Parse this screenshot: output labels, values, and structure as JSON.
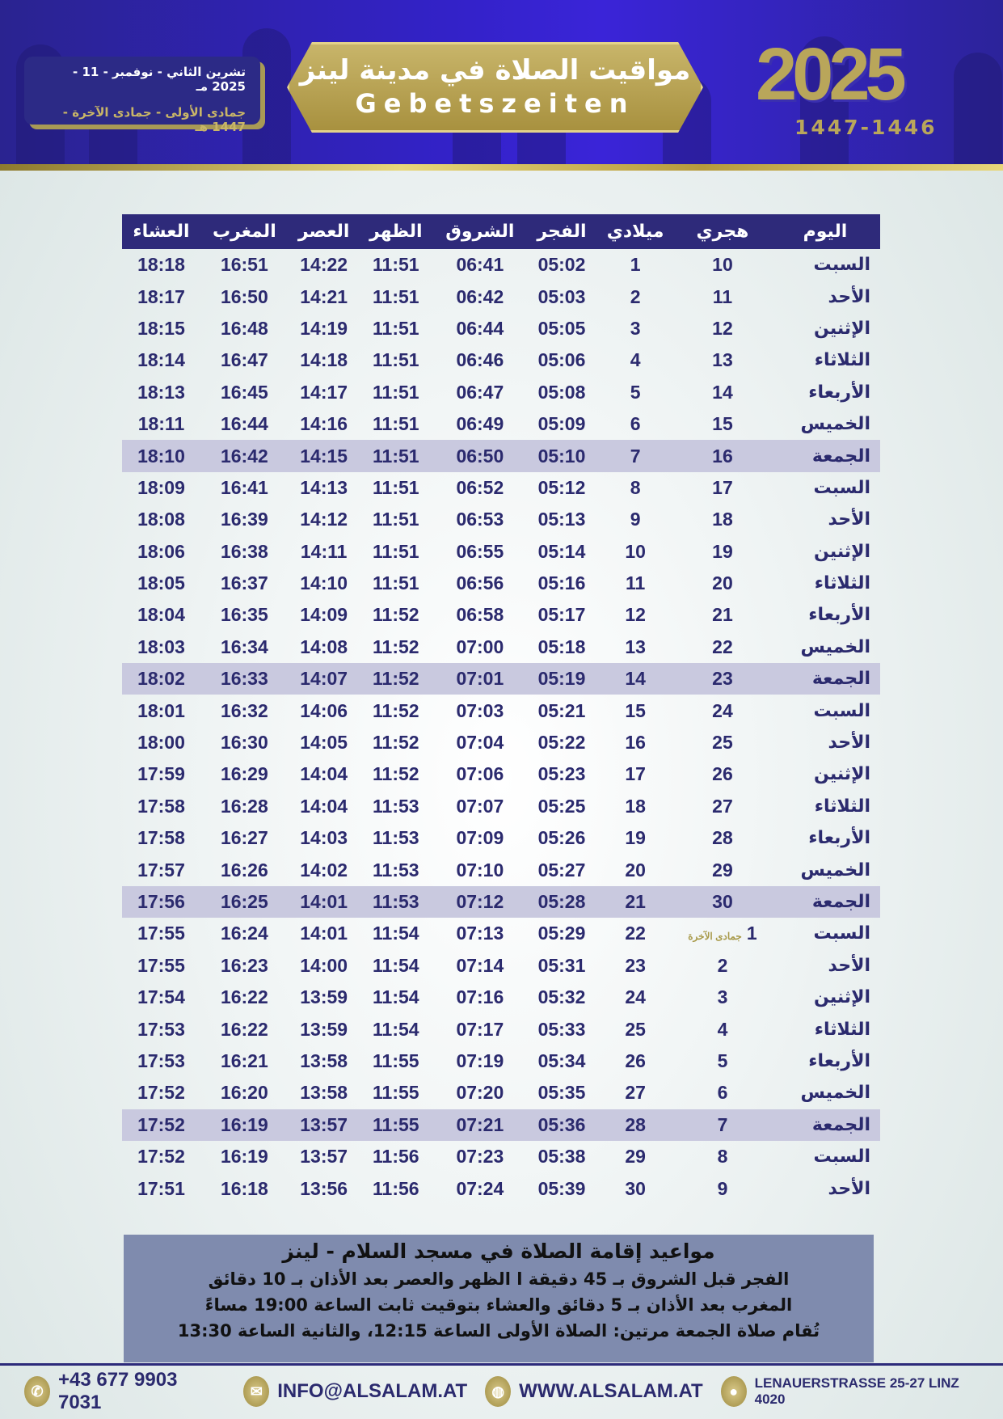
{
  "header": {
    "gregorian_range": "تشرين الثاني - نوفمبر - 11 - 2025 مـ",
    "hijri_range": "جمادى الأولى - جمادى الآخرة - 1447 هـ",
    "title_ar": "مواقيت الصلاة في مدينة لينز",
    "title_de": "Gebetszeiten",
    "year": "2025",
    "hijri_years": "1447-1446"
  },
  "colors": {
    "header_blue": "#3322c8",
    "gold": "#b9a65a",
    "navy": "#2e2a7a",
    "friday_row": "#c9c9df",
    "notice_bg": "#7f8bae"
  },
  "table": {
    "columns": [
      "اليوم",
      "هجري",
      "ميلادي",
      "الفجر",
      "الشروق",
      "الظهر",
      "العصر",
      "المغرب",
      "العشاء"
    ],
    "rows": [
      [
        "السبت",
        "10",
        "1",
        "05:02",
        "06:41",
        "11:51",
        "14:22",
        "16:51",
        "18:18"
      ],
      [
        "الأحد",
        "11",
        "2",
        "05:03",
        "06:42",
        "11:51",
        "14:21",
        "16:50",
        "18:17"
      ],
      [
        "الإثنين",
        "12",
        "3",
        "05:05",
        "06:44",
        "11:51",
        "14:19",
        "16:48",
        "18:15"
      ],
      [
        "الثلاثاء",
        "13",
        "4",
        "05:06",
        "06:46",
        "11:51",
        "14:18",
        "16:47",
        "18:14"
      ],
      [
        "الأربعاء",
        "14",
        "5",
        "05:08",
        "06:47",
        "11:51",
        "14:17",
        "16:45",
        "18:13"
      ],
      [
        "الخميس",
        "15",
        "6",
        "05:09",
        "06:49",
        "11:51",
        "14:16",
        "16:44",
        "18:11"
      ],
      [
        "الجمعة",
        "16",
        "7",
        "05:10",
        "06:50",
        "11:51",
        "14:15",
        "16:42",
        "18:10"
      ],
      [
        "السبت",
        "17",
        "8",
        "05:12",
        "06:52",
        "11:51",
        "14:13",
        "16:41",
        "18:09"
      ],
      [
        "الأحد",
        "18",
        "9",
        "05:13",
        "06:53",
        "11:51",
        "14:12",
        "16:39",
        "18:08"
      ],
      [
        "الإثنين",
        "19",
        "10",
        "05:14",
        "06:55",
        "11:51",
        "14:11",
        "16:38",
        "18:06"
      ],
      [
        "الثلاثاء",
        "20",
        "11",
        "05:16",
        "06:56",
        "11:51",
        "14:10",
        "16:37",
        "18:05"
      ],
      [
        "الأربعاء",
        "21",
        "12",
        "05:17",
        "06:58",
        "11:52",
        "14:09",
        "16:35",
        "18:04"
      ],
      [
        "الخميس",
        "22",
        "13",
        "05:18",
        "07:00",
        "11:52",
        "14:08",
        "16:34",
        "18:03"
      ],
      [
        "الجمعة",
        "23",
        "14",
        "05:19",
        "07:01",
        "11:52",
        "14:07",
        "16:33",
        "18:02"
      ],
      [
        "السبت",
        "24",
        "15",
        "05:21",
        "07:03",
        "11:52",
        "14:06",
        "16:32",
        "18:01"
      ],
      [
        "الأحد",
        "25",
        "16",
        "05:22",
        "07:04",
        "11:52",
        "14:05",
        "16:30",
        "18:00"
      ],
      [
        "الإثنين",
        "26",
        "17",
        "05:23",
        "07:06",
        "11:52",
        "14:04",
        "16:29",
        "17:59"
      ],
      [
        "الثلاثاء",
        "27",
        "18",
        "05:25",
        "07:07",
        "11:53",
        "14:04",
        "16:28",
        "17:58"
      ],
      [
        "الأربعاء",
        "28",
        "19",
        "05:26",
        "07:09",
        "11:53",
        "14:03",
        "16:27",
        "17:58"
      ],
      [
        "الخميس",
        "29",
        "20",
        "05:27",
        "07:10",
        "11:53",
        "14:02",
        "16:26",
        "17:57"
      ],
      [
        "الجمعة",
        "30",
        "21",
        "05:28",
        "07:12",
        "11:53",
        "14:01",
        "16:25",
        "17:56"
      ],
      [
        "السبت",
        "1",
        "22",
        "05:29",
        "07:13",
        "11:54",
        "14:01",
        "16:24",
        "17:55"
      ],
      [
        "الأحد",
        "2",
        "23",
        "05:31",
        "07:14",
        "11:54",
        "14:00",
        "16:23",
        "17:55"
      ],
      [
        "الإثنين",
        "3",
        "24",
        "05:32",
        "07:16",
        "11:54",
        "13:59",
        "16:22",
        "17:54"
      ],
      [
        "الثلاثاء",
        "4",
        "25",
        "05:33",
        "07:17",
        "11:54",
        "13:59",
        "16:22",
        "17:53"
      ],
      [
        "الأربعاء",
        "5",
        "26",
        "05:34",
        "07:19",
        "11:55",
        "13:58",
        "16:21",
        "17:53"
      ],
      [
        "الخميس",
        "6",
        "27",
        "05:35",
        "07:20",
        "11:55",
        "13:58",
        "16:20",
        "17:52"
      ],
      [
        "الجمعة",
        "7",
        "28",
        "05:36",
        "07:21",
        "11:55",
        "13:57",
        "16:19",
        "17:52"
      ],
      [
        "السبت",
        "8",
        "29",
        "05:38",
        "07:23",
        "11:56",
        "13:57",
        "16:19",
        "17:52"
      ],
      [
        "الأحد",
        "9",
        "30",
        "05:39",
        "07:24",
        "11:56",
        "13:56",
        "16:18",
        "17:51"
      ]
    ],
    "month_change_note": "جمادى الآخرة"
  },
  "notice": {
    "title": "مواعيد إقامة الصلاة في مسجد السلام - لينز",
    "lines": [
      "الفجر قبل الشروق بـ 45 دقيقة ا الظهر والعصر بعد الأذان بـ 10 دقائق",
      "المغرب بعد الأذان بـ 5 دقائق والعشاء بتوقيت ثابت الساعة 19:00 مساءً",
      "تُقام صلاة الجمعة مرتين: الصلاة الأولى الساعة 12:15، والثانية الساعة 13:30"
    ]
  },
  "footer": {
    "phone": "+43 677 9903  7031",
    "email": "INFO@ALSALAM.AT",
    "website": "WWW.ALSALAM.AT",
    "address": "LENAUERSTRASSE 25-27  LINZ 4020"
  }
}
